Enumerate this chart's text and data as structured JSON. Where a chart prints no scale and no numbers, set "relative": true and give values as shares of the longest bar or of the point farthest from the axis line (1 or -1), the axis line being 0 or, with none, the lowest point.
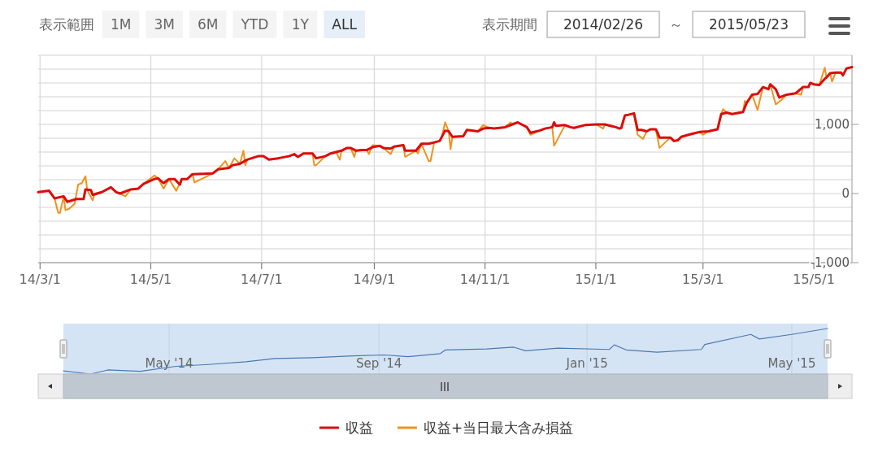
{
  "chart_data": [
    {
      "type": "line",
      "annotations": [
        "表示範囲",
        "1M",
        "3M",
        "6M",
        "YTD",
        "1Y",
        "ALL",
        "表示期間",
        "2014/02/26",
        "～",
        "2015/05/23"
      ],
      "xlim": [
        "2014-02-28",
        "2015-05-22"
      ],
      "xticks": [
        {
          "value": "2014-03-01",
          "label": "14/3/1"
        },
        {
          "value": "2014-05-01",
          "label": "14/5/1"
        },
        {
          "value": "2014-07-01",
          "label": "14/7/1"
        },
        {
          "value": "2014-09-01",
          "label": "14/9/1"
        },
        {
          "value": "2014-11-01",
          "label": "14/11/1"
        },
        {
          "value": "2015-01-01",
          "label": "15/1/1"
        },
        {
          "value": "2015-03-01",
          "label": "15/3/1"
        },
        {
          "value": "2015-05-01",
          "label": "15/5/1"
        }
      ],
      "ylim": [
        -1000,
        2000
      ],
      "yticks": [
        {
          "value": -1000,
          "label": "-1,000"
        },
        {
          "value": -800,
          "label": null
        },
        {
          "value": -600,
          "label": null
        },
        {
          "value": -400,
          "label": null
        },
        {
          "value": -200,
          "label": null
        },
        {
          "value": 0,
          "label": "0"
        },
        {
          "value": 200,
          "label": null
        },
        {
          "value": 400,
          "label": null
        },
        {
          "value": 600,
          "label": null
        },
        {
          "value": 800,
          "label": null
        },
        {
          "value": 1000,
          "label": "1,000"
        },
        {
          "value": 1200,
          "label": null
        },
        {
          "value": 1400,
          "label": null
        },
        {
          "value": 1600,
          "label": null
        },
        {
          "value": 1800,
          "label": null
        },
        {
          "value": 2000,
          "label": null
        }
      ],
      "grid": true,
      "legend": "bottom",
      "series": [
        {
          "name": "収益+当日最大含み損益",
          "color": "#f0921e",
          "x": [
            "2014-02-28",
            "2014-03-06",
            "2014-03-09",
            "2014-03-11",
            "2014-03-12",
            "2014-03-14",
            "2014-03-15",
            "2014-03-17",
            "2014-03-20",
            "2014-03-22",
            "2014-03-24",
            "2014-03-26",
            "2014-03-27",
            "2014-03-30",
            "2014-03-31",
            "2014-04-04",
            "2014-04-09",
            "2014-04-12",
            "2014-04-14",
            "2014-04-17",
            "2014-04-20",
            "2014-04-24",
            "2014-04-27",
            "2014-05-03",
            "2014-05-05",
            "2014-05-08",
            "2014-05-11",
            "2014-05-15",
            "2014-05-18",
            "2014-05-21",
            "2014-05-24",
            "2014-05-25",
            "2014-06-04",
            "2014-06-07",
            "2014-06-11",
            "2014-06-13",
            "2014-06-16",
            "2014-06-19",
            "2014-06-21",
            "2014-06-22",
            "2014-06-23",
            "2014-06-29",
            "2014-07-02",
            "2014-07-05",
            "2014-07-10",
            "2014-07-16",
            "2014-07-19",
            "2014-07-21",
            "2014-07-24",
            "2014-07-29",
            "2014-07-30",
            "2014-07-31",
            "2014-08-05",
            "2014-08-08",
            "2014-08-11",
            "2014-08-13",
            "2014-08-14",
            "2014-08-17",
            "2014-08-19",
            "2014-08-21",
            "2014-08-22",
            "2014-08-25",
            "2014-08-28",
            "2014-08-29",
            "2014-08-31",
            "2014-09-04",
            "2014-09-06",
            "2014-09-10",
            "2014-09-12",
            "2014-09-17",
            "2014-09-18",
            "2014-09-24",
            "2014-09-25",
            "2014-09-27",
            "2014-10-01",
            "2014-10-02",
            "2014-10-04",
            "2014-10-07",
            "2014-10-08",
            "2014-10-10",
            "2014-10-12",
            "2014-10-13",
            "2014-10-14",
            "2014-10-20",
            "2014-10-22",
            "2014-10-28",
            "2014-10-31",
            "2014-11-03",
            "2014-11-06",
            "2014-11-12",
            "2014-11-15",
            "2014-11-16",
            "2014-11-19",
            "2014-11-24",
            "2014-11-26",
            "2014-12-01",
            "2014-12-04",
            "2014-12-08",
            "2014-12-09",
            "2014-12-12",
            "2014-12-15",
            "2014-12-18",
            "2014-12-20",
            "2014-12-26",
            "2015-01-01",
            "2015-01-05",
            "2015-01-06",
            "2015-01-09",
            "2015-01-12",
            "2015-01-14",
            "2015-01-15",
            "2015-01-17",
            "2015-01-19",
            "2015-01-22",
            "2015-01-24",
            "2015-01-27",
            "2015-01-29",
            "2015-01-31",
            "2015-02-03",
            "2015-02-05",
            "2015-02-11",
            "2015-02-13",
            "2015-02-15",
            "2015-02-17",
            "2015-02-21",
            "2015-02-24",
            "2015-02-27",
            "2015-03-01",
            "2015-03-04",
            "2015-03-09",
            "2015-03-11",
            "2015-03-12",
            "2015-03-14",
            "2015-03-17",
            "2015-03-23",
            "2015-03-24",
            "2015-03-25",
            "2015-03-28",
            "2015-03-31",
            "2015-04-03",
            "2015-04-06",
            "2015-04-07",
            "2015-04-10",
            "2015-04-13",
            "2015-04-16",
            "2015-04-21",
            "2015-04-24",
            "2015-04-25",
            "2015-04-28",
            "2015-04-29",
            "2015-05-01",
            "2015-05-04",
            "2015-05-07",
            "2015-05-08",
            "2015-05-10",
            "2015-05-11",
            "2015-05-13",
            "2015-05-14",
            "2015-05-16"
          ],
          "values": [
            20,
            40,
            -70,
            -280,
            -280,
            -40,
            -240,
            -220,
            -150,
            130,
            150,
            250,
            50,
            -100,
            0,
            20,
            90,
            20,
            0,
            -40,
            60,
            70,
            140,
            260,
            220,
            70,
            210,
            40,
            210,
            210,
            280,
            160,
            290,
            350,
            470,
            370,
            510,
            430,
            620,
            410,
            490,
            540,
            540,
            490,
            510,
            540,
            570,
            530,
            580,
            580,
            410,
            410,
            540,
            580,
            600,
            490,
            620,
            660,
            660,
            530,
            620,
            630,
            630,
            570,
            700,
            690,
            660,
            570,
            680,
            700,
            530,
            620,
            580,
            720,
            470,
            470,
            740,
            760,
            800,
            1030,
            900,
            640,
            820,
            830,
            920,
            900,
            990,
            950,
            940,
            960,
            1030,
            1000,
            1030,
            960,
            850,
            910,
            940,
            960,
            690,
            840,
            990,
            960,
            950,
            990,
            1000,
            940,
            1000,
            980,
            960,
            940,
            950,
            1130,
            1140,
            1160,
            850,
            790,
            900,
            930,
            930,
            660,
            810,
            760,
            770,
            820,
            850,
            870,
            890,
            850,
            900,
            930,
            1150,
            1220,
            1170,
            1150,
            1180,
            1340,
            1310,
            1430,
            1210,
            1540,
            1510,
            1580,
            1290,
            1350,
            1430,
            1450,
            1430,
            1540,
            1540,
            1600,
            1580,
            1570,
            1820,
            1680,
            1740,
            1620,
            1750,
            1740,
            1750
          ]
        },
        {
          "name": "収益",
          "color": "#dc0c0c",
          "x": [
            "2014-02-28",
            "2014-03-06",
            "2014-03-09",
            "2014-03-14",
            "2014-03-16",
            "2014-03-21",
            "2014-03-25",
            "2014-03-26",
            "2014-03-29",
            "2014-03-30",
            "2014-04-04",
            "2014-04-09",
            "2014-04-12",
            "2014-04-14",
            "2014-04-20",
            "2014-04-24",
            "2014-04-27",
            "2014-05-03",
            "2014-05-05",
            "2014-05-08",
            "2014-05-11",
            "2014-05-14",
            "2014-05-17",
            "2014-05-18",
            "2014-05-21",
            "2014-05-24",
            "2014-06-04",
            "2014-06-07",
            "2014-06-13",
            "2014-06-15",
            "2014-06-19",
            "2014-06-23",
            "2014-06-29",
            "2014-07-02",
            "2014-07-05",
            "2014-07-10",
            "2014-07-16",
            "2014-07-19",
            "2014-07-21",
            "2014-07-24",
            "2014-07-29",
            "2014-07-31",
            "2014-08-05",
            "2014-08-08",
            "2014-08-11",
            "2014-08-14",
            "2014-08-17",
            "2014-08-19",
            "2014-08-22",
            "2014-08-25",
            "2014-08-28",
            "2014-08-31",
            "2014-09-04",
            "2014-09-06",
            "2014-09-10",
            "2014-09-12",
            "2014-09-17",
            "2014-09-18",
            "2014-09-24",
            "2014-09-27",
            "2014-10-01",
            "2014-10-04",
            "2014-10-07",
            "2014-10-10",
            "2014-10-12",
            "2014-10-14",
            "2014-10-20",
            "2014-10-22",
            "2014-10-28",
            "2014-10-31",
            "2014-11-03",
            "2014-11-06",
            "2014-11-12",
            "2014-11-16",
            "2014-11-19",
            "2014-11-24",
            "2014-11-26",
            "2014-12-01",
            "2014-12-04",
            "2014-12-08",
            "2014-12-09",
            "2014-12-10",
            "2014-12-15",
            "2014-12-18",
            "2014-12-20",
            "2014-12-26",
            "2015-01-01",
            "2015-01-06",
            "2015-01-09",
            "2015-01-12",
            "2015-01-14",
            "2015-01-15",
            "2015-01-17",
            "2015-01-19",
            "2015-01-22",
            "2015-01-24",
            "2015-01-26",
            "2015-01-29",
            "2015-01-31",
            "2015-02-03",
            "2015-02-04",
            "2015-02-05",
            "2015-02-11",
            "2015-02-13",
            "2015-02-15",
            "2015-02-17",
            "2015-02-21",
            "2015-02-24",
            "2015-02-27",
            "2015-03-04",
            "2015-03-09",
            "2015-03-11",
            "2015-03-14",
            "2015-03-17",
            "2015-03-23",
            "2015-03-25",
            "2015-03-28",
            "2015-03-31",
            "2015-04-03",
            "2015-04-06",
            "2015-04-07",
            "2015-04-10",
            "2015-04-12",
            "2015-04-16",
            "2015-04-21",
            "2015-04-25",
            "2015-04-28",
            "2015-04-29",
            "2015-05-01",
            "2015-05-04",
            "2015-05-07",
            "2015-05-08",
            "2015-05-10",
            "2015-05-13",
            "2015-05-16",
            "2015-05-17",
            "2015-05-19",
            "2015-05-22"
          ],
          "values": [
            20,
            40,
            -70,
            -40,
            -120,
            -80,
            -80,
            60,
            50,
            -20,
            20,
            90,
            20,
            0,
            60,
            70,
            140,
            210,
            220,
            150,
            210,
            210,
            130,
            210,
            210,
            280,
            290,
            350,
            370,
            410,
            430,
            490,
            540,
            540,
            490,
            510,
            540,
            570,
            530,
            580,
            580,
            510,
            540,
            580,
            600,
            620,
            660,
            660,
            620,
            630,
            630,
            670,
            690,
            660,
            650,
            680,
            700,
            620,
            620,
            720,
            720,
            740,
            760,
            910,
            900,
            820,
            830,
            920,
            900,
            940,
            950,
            940,
            960,
            1000,
            1030,
            960,
            880,
            910,
            940,
            960,
            1030,
            980,
            990,
            960,
            950,
            990,
            1000,
            1000,
            980,
            960,
            940,
            950,
            1130,
            1140,
            1160,
            920,
            920,
            900,
            930,
            930,
            880,
            810,
            810,
            760,
            770,
            820,
            850,
            870,
            890,
            900,
            930,
            1150,
            1170,
            1150,
            1180,
            1310,
            1430,
            1440,
            1540,
            1510,
            1580,
            1510,
            1390,
            1430,
            1450,
            1540,
            1540,
            1600,
            1580,
            1570,
            1660,
            1680,
            1740,
            1750,
            1750,
            1710,
            1810,
            1830
          ]
        }
      ]
    },
    {
      "type": "line",
      "relative": true,
      "grid": "x",
      "xlim": [
        "2014-02-28",
        "2015-05-22"
      ],
      "xticks": [
        {
          "value": "2014-05-01",
          "label": "May '14"
        },
        {
          "value": "2014-09-01",
          "label": "Sep '14"
        },
        {
          "value": "2015-01-01",
          "label": "Jan '15"
        },
        {
          "value": "2015-05-01",
          "label": "May '15"
        }
      ],
      "series": [
        {
          "color": "#4a7ab0",
          "x": [
            "2014-02-28",
            "2014-03-16",
            "2014-03-26",
            "2014-04-14",
            "2014-05-05",
            "2014-05-24",
            "2014-06-15",
            "2014-07-02",
            "2014-07-24",
            "2014-08-17",
            "2014-09-04",
            "2014-09-18",
            "2014-10-07",
            "2014-10-10",
            "2014-11-03",
            "2014-11-19",
            "2014-11-26",
            "2014-12-15",
            "2015-01-14",
            "2015-01-17",
            "2015-01-24",
            "2015-02-11",
            "2015-03-09",
            "2015-03-11",
            "2015-04-07",
            "2015-04-12",
            "2015-05-01",
            "2015-05-22"
          ],
          "values": [
            0.07,
            0,
            0.09,
            0.06,
            0.17,
            0.21,
            0.27,
            0.34,
            0.36,
            0.4,
            0.42,
            0.38,
            0.45,
            0.53,
            0.55,
            0.59,
            0.51,
            0.57,
            0.54,
            0.64,
            0.53,
            0.48,
            0.54,
            0.65,
            0.87,
            0.77,
            0.87,
            1
          ]
        }
      ]
    }
  ]
}
